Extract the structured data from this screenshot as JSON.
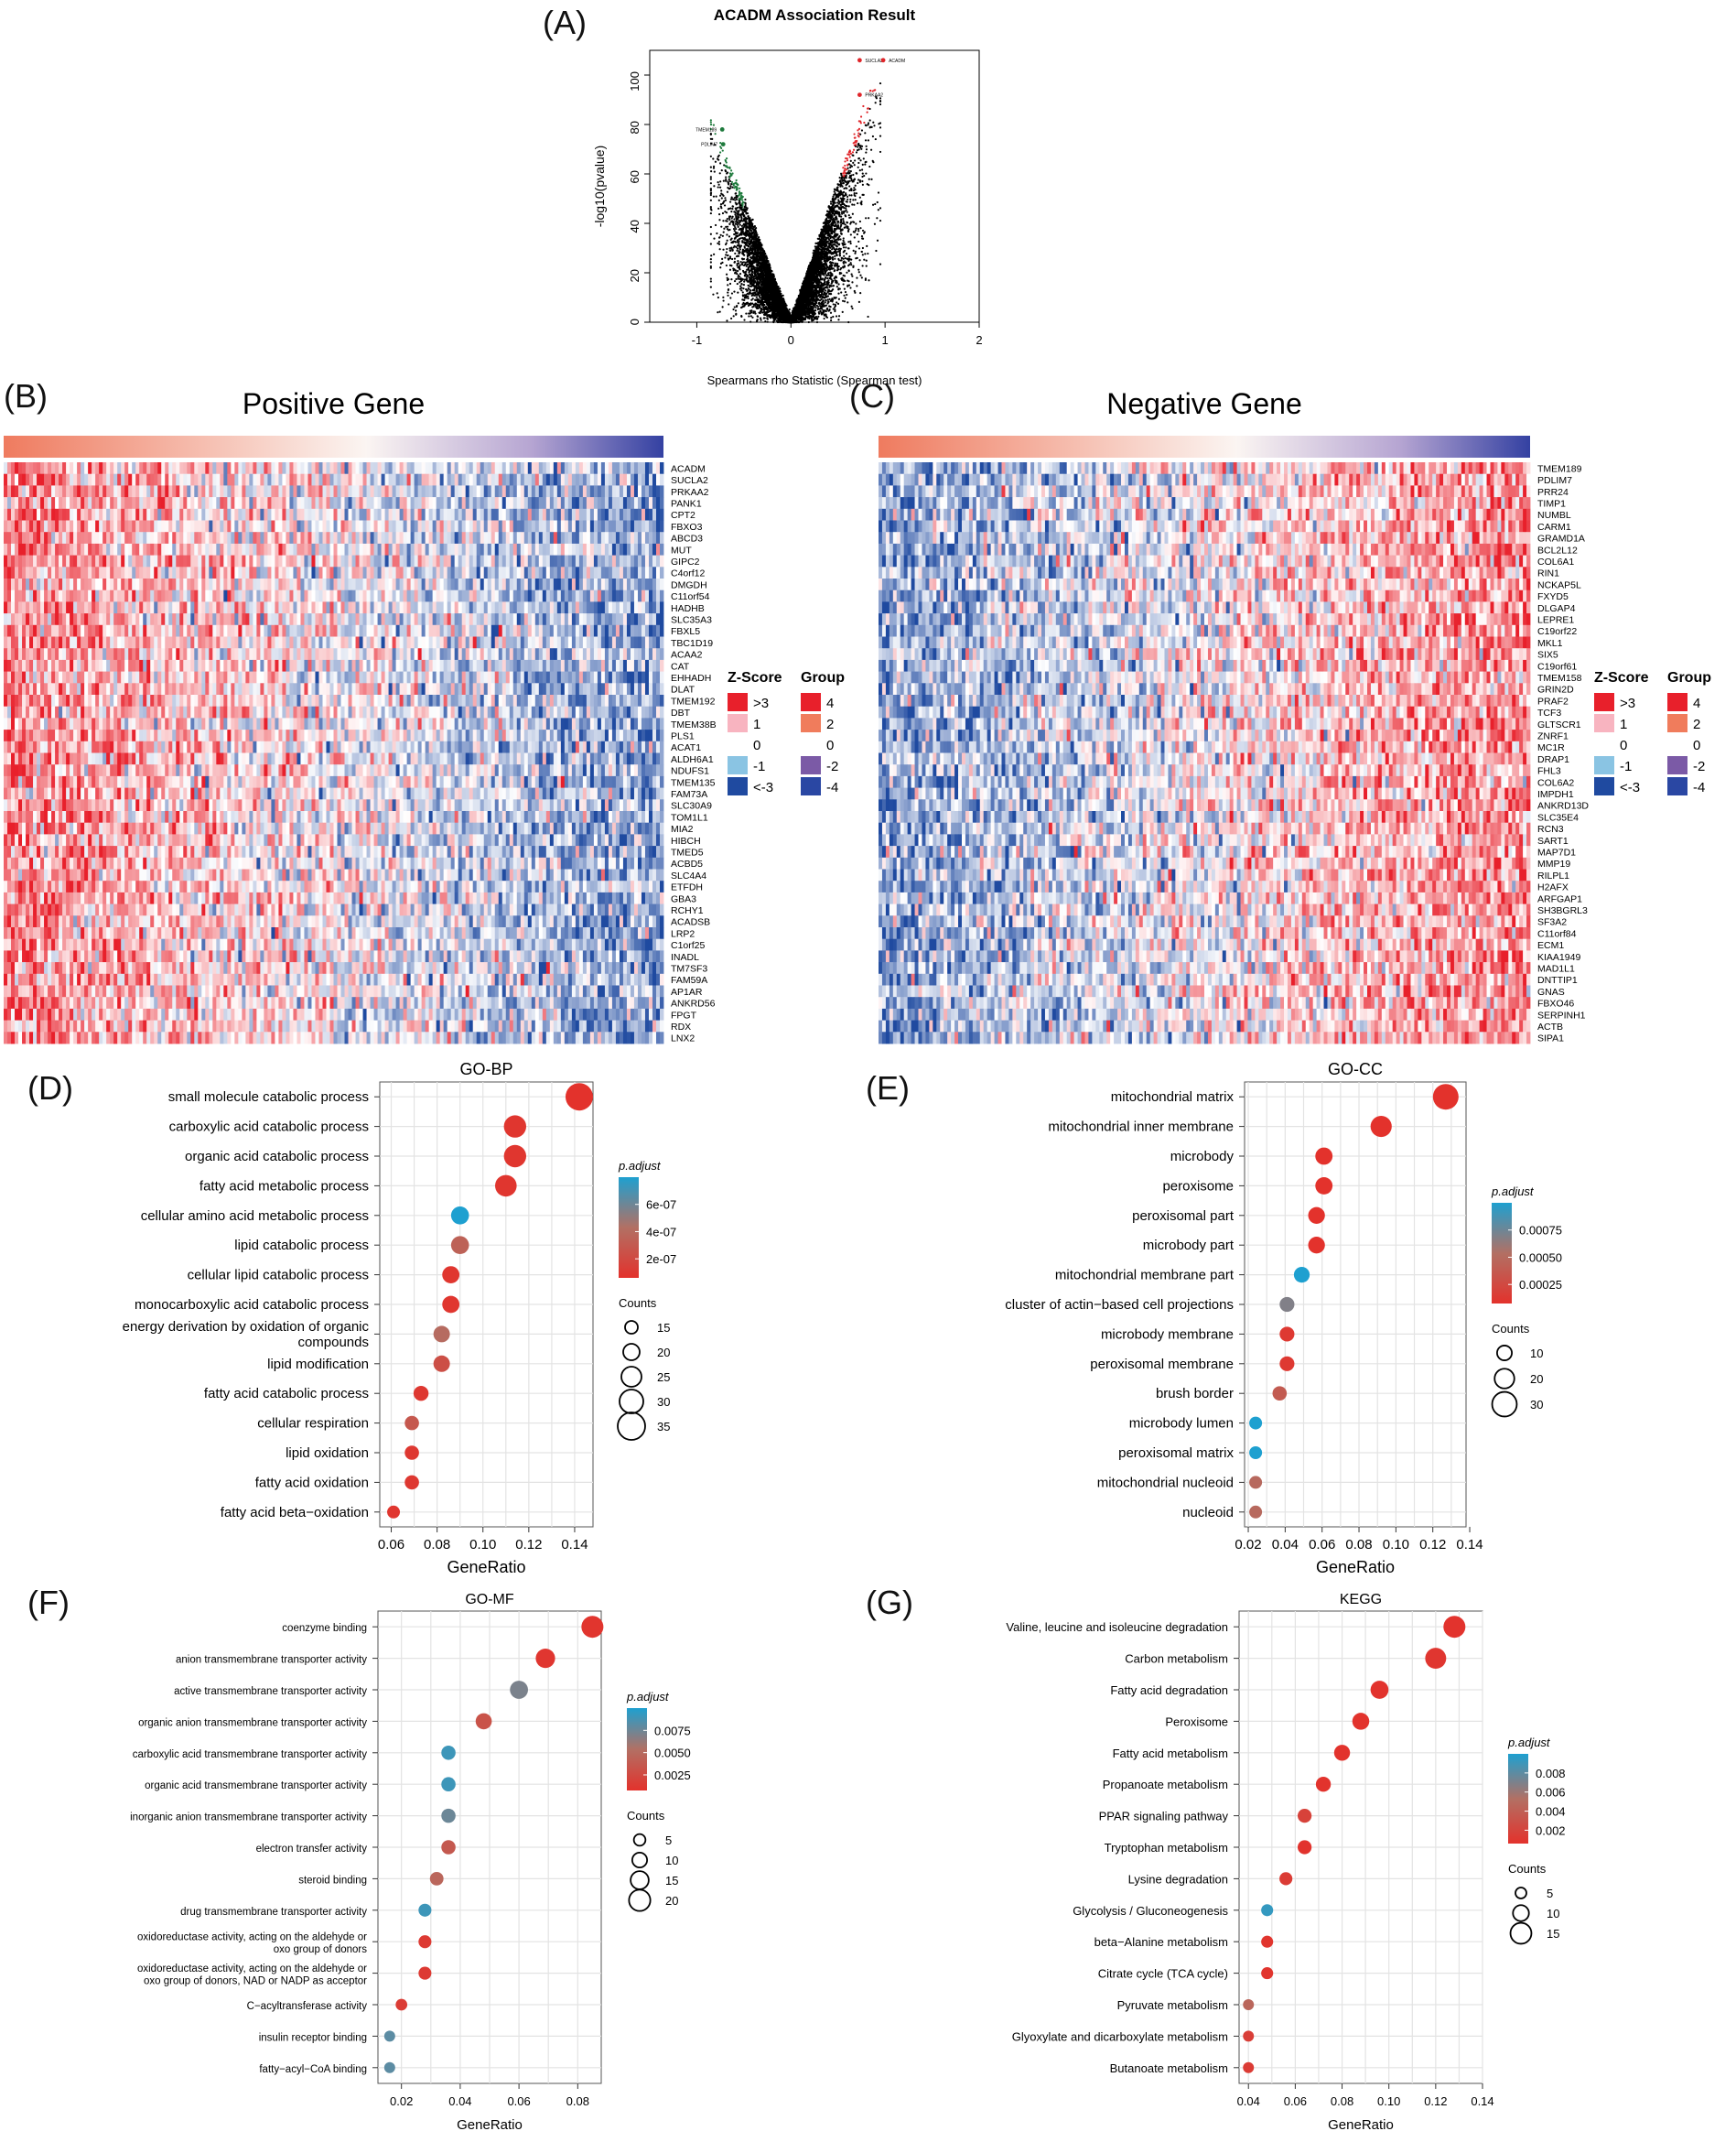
{
  "panels": {
    "A": "(A)",
    "B": "(B)",
    "C": "(C)",
    "D": "(D)",
    "E": "(E)",
    "F": "(F)",
    "G": "(G)"
  },
  "chart_data": [
    {
      "id": "A",
      "type": "scatter",
      "title": "ACADM Association Result",
      "xlabel": "Spearmans rho Statistic (Spearman test)",
      "ylabel": "-log10(pvalue)",
      "xlim": [
        -1.5,
        2.0
      ],
      "ylim": [
        0,
        110
      ],
      "xticks": [
        -1,
        0,
        1,
        2
      ],
      "yticks": [
        0,
        20,
        40,
        60,
        80,
        100
      ],
      "labeled_points": [
        {
          "label": "SUCLA2",
          "x": 0.73,
          "y": 106
        },
        {
          "label": "ACADM",
          "x": 0.98,
          "y": 106
        },
        {
          "label": "PRKAA2",
          "x": 0.73,
          "y": 92
        },
        {
          "label": "TMEM189",
          "x": -0.73,
          "y": 78
        },
        {
          "label": "PDLIM7",
          "x": -0.72,
          "y": 72
        }
      ],
      "colors": {
        "positive": "#e0252a",
        "negative": "#1e7a3c",
        "other": "#000000"
      }
    },
    {
      "id": "B",
      "type": "heatmap",
      "title": "Positive Gene",
      "genes": [
        "ACADM",
        "SUCLA2",
        "PRKAA2",
        "PANK1",
        "CPT2",
        "FBXO3",
        "ABCD3",
        "MUT",
        "GIPC2",
        "C4orf12",
        "DMGDH",
        "C11orf54",
        "HADHB",
        "SLC35A3",
        "FBXL5",
        "TBC1D19",
        "ACAA2",
        "CAT",
        "EHHADH",
        "DLAT",
        "TMEM192",
        "DBT",
        "TMEM38B",
        "PLS1",
        "ACAT1",
        "ALDH6A1",
        "NDUFS1",
        "TMEM135",
        "FAM73A",
        "SLC30A9",
        "TOM1L1",
        "MIA2",
        "HIBCH",
        "TMED5",
        "ACBD5",
        "SLC4A4",
        "ETFDH",
        "GBA3",
        "RCHY1",
        "ACADSB",
        "LRP2",
        "C1orf25",
        "INADL",
        "TM7SF3",
        "FAM59A",
        "AP1AR",
        "ANKRD56",
        "FPGT",
        "RDX",
        "LNX2"
      ],
      "legend": {
        "zscore_title": "Z-Score",
        "zscore_labels": [
          ">3",
          "1",
          "0",
          "-1",
          "<-3"
        ],
        "zscore_colors": [
          "#e8202b",
          "#f8b4c0",
          "#ffffff",
          "#8ac4e3",
          "#1f4aa0"
        ],
        "group_title": "Group",
        "group_labels": [
          "4",
          "2",
          "0",
          "-2",
          "-4"
        ],
        "group_colors": [
          "#e8202b",
          "#f07c5c",
          "#ffffff",
          "#7b5aa6",
          "#2a47a3"
        ]
      }
    },
    {
      "id": "C",
      "type": "heatmap",
      "title": "Negative Gene",
      "genes": [
        "TMEM189",
        "PDLIM7",
        "PRR24",
        "TIMP1",
        "NUMBL",
        "CARM1",
        "GRAMD1A",
        "BCL2L12",
        "COL6A1",
        "RIN1",
        "NCKAP5L",
        "FXYD5",
        "DLGAP4",
        "LEPRE1",
        "C19orf22",
        "MKL1",
        "SIX5",
        "C19orf61",
        "TMEM158",
        "GRIN2D",
        "PRAF2",
        "TCF3",
        "GLTSCR1",
        "ZNRF1",
        "MC1R",
        "DRAP1",
        "FHL3",
        "COL6A2",
        "IMPDH1",
        "ANKRD13D",
        "SLC35E4",
        "RCN3",
        "SART1",
        "MAP7D1",
        "MMP19",
        "RILPL1",
        "H2AFX",
        "ARFGAP1",
        "SH3BGRL3",
        "SF3A2",
        "C11orf84",
        "ECM1",
        "KIAA1949",
        "MAD1L1",
        "DNTTIP1",
        "GNAS",
        "FBXO46",
        "SERPINH1",
        "ACTB",
        "SIPA1"
      ],
      "legend": {
        "zscore_title": "Z-Score",
        "zscore_labels": [
          ">3",
          "1",
          "0",
          "-1",
          "<-3"
        ],
        "zscore_colors": [
          "#e8202b",
          "#f8b4c0",
          "#ffffff",
          "#8ac4e3",
          "#1f4aa0"
        ],
        "group_title": "Group",
        "group_labels": [
          "4",
          "2",
          "0",
          "-2",
          "-4"
        ],
        "group_colors": [
          "#e8202b",
          "#f07c5c",
          "#ffffff",
          "#7b5aa6",
          "#2a47a3"
        ]
      }
    },
    {
      "id": "D",
      "type": "scatter",
      "title": "GO-BP",
      "xlabel": "GeneRatio",
      "xlim": [
        0.055,
        0.148
      ],
      "xticks": [
        "0.06",
        "0.08",
        "0.10",
        "0.12",
        "0.14"
      ],
      "terms": [
        "small molecule catabolic process",
        "carboxylic acid catabolic process",
        "organic acid catabolic process",
        "fatty acid metabolic process",
        "cellular amino acid metabolic process",
        "lipid catabolic process",
        "cellular lipid catabolic process",
        "monocarboxylic acid catabolic process",
        "energy derivation by oxidation of organic compounds",
        "lipid modification",
        "fatty acid catabolic process",
        "cellular respiration",
        "lipid oxidation",
        "fatty acid oxidation",
        "fatty acid beta−oxidation"
      ],
      "gene_ratio": [
        0.142,
        0.114,
        0.114,
        0.11,
        0.09,
        0.09,
        0.086,
        0.086,
        0.082,
        0.082,
        0.073,
        0.069,
        0.069,
        0.069,
        0.061
      ],
      "counts": [
        35,
        28,
        28,
        27,
        22,
        22,
        21,
        21,
        20,
        20,
        18,
        17,
        17,
        17,
        15
      ],
      "p_adjust": [
        1e-10,
        2e-08,
        2e-08,
        2e-08,
        6.5e-07,
        2.5e-07,
        2e-08,
        2e-08,
        3e-07,
        1.5e-07,
        3e-08,
        2e-07,
        3e-08,
        3e-08,
        2e-08
      ],
      "legend": {
        "color_title": "p.adjust",
        "color_ticks": [
          "6e-07",
          "4e-07",
          "2e-07"
        ],
        "size_title": "Counts",
        "size_ticks": [
          "15",
          "20",
          "25",
          "30",
          "35"
        ]
      }
    },
    {
      "id": "E",
      "type": "scatter",
      "title": "GO-CC",
      "xlabel": "GeneRatio",
      "xlim": [
        0.018,
        0.138
      ],
      "xticks": [
        "0.02",
        "0.04",
        "0.06",
        "0.08",
        "0.10",
        "0.12",
        "0.14"
      ],
      "terms": [
        "mitochondrial matrix",
        "mitochondrial inner membrane",
        "microbody",
        "peroxisome",
        "peroxisomal part",
        "microbody part",
        "mitochondrial membrane part",
        "cluster of actin−based cell projections",
        "microbody membrane",
        "peroxisomal membrane",
        "brush border",
        "microbody lumen",
        "peroxisomal matrix",
        "mitochondrial nucleoid",
        "nucleoid"
      ],
      "gene_ratio": [
        0.127,
        0.092,
        0.061,
        0.061,
        0.057,
        0.057,
        0.049,
        0.041,
        0.041,
        0.041,
        0.037,
        0.024,
        0.024,
        0.024,
        0.024
      ],
      "counts": [
        32,
        23,
        15,
        15,
        14,
        14,
        12,
        10,
        10,
        10,
        9,
        6,
        6,
        6,
        6
      ],
      "p_adjust": [
        1e-08,
        1e-07,
        1e-06,
        1e-06,
        2e-06,
        2e-06,
        0.0009,
        0.0006,
        5e-05,
        5e-05,
        0.0003,
        0.0009,
        0.0009,
        0.0004,
        0.0004
      ],
      "legend": {
        "color_title": "p.adjust",
        "color_ticks": [
          "0.00075",
          "0.00050",
          "0.00025"
        ],
        "size_title": "Counts",
        "size_ticks": [
          "10",
          "20",
          "30"
        ]
      }
    },
    {
      "id": "F",
      "type": "scatter",
      "title": "GO-MF",
      "xlabel": "GeneRatio",
      "xlim": [
        0.012,
        0.088
      ],
      "xticks": [
        "0.02",
        "0.04",
        "0.06",
        "0.08"
      ],
      "terms": [
        "coenzyme binding",
        "anion transmembrane transporter activity",
        "active transmembrane transporter activity",
        "organic anion transmembrane transporter activity",
        "carboxylic acid transmembrane transporter activity",
        "organic acid transmembrane transporter activity",
        "inorganic anion transmembrane transporter activity",
        "electron transfer activity",
        "steroid binding",
        "drug transmembrane transporter activity",
        "oxidoreductase activity, acting on the aldehyde or oxo group of donors",
        "oxidoreductase activity, acting on the aldehyde or oxo group of donors, NAD or NADP as acceptor",
        "C−acyltransferase activity",
        "insulin receptor binding",
        "fatty−acyl−CoA binding"
      ],
      "gene_ratio": [
        0.085,
        0.069,
        0.06,
        0.048,
        0.036,
        0.036,
        0.036,
        0.036,
        0.032,
        0.028,
        0.028,
        0.028,
        0.02,
        0.016,
        0.016
      ],
      "counts": [
        21,
        17,
        15,
        12,
        9,
        9,
        9,
        9,
        8,
        7,
        7,
        7,
        5,
        4,
        4
      ],
      "p_adjust": [
        0.0002,
        0.0003,
        0.0065,
        0.0025,
        0.0085,
        0.0085,
        0.007,
        0.003,
        0.004,
        0.0085,
        0.0006,
        0.0006,
        0.0008,
        0.0075,
        0.0075
      ],
      "legend": {
        "color_title": "p.adjust",
        "color_ticks": [
          "0.0075",
          "0.0050",
          "0.0025"
        ],
        "size_title": "Counts",
        "size_ticks": [
          "5",
          "10",
          "15",
          "20"
        ]
      }
    },
    {
      "id": "G",
      "type": "scatter",
      "title": "KEGG",
      "xlabel": "GeneRatio",
      "xlim": [
        0.036,
        0.14
      ],
      "xticks": [
        "0.04",
        "0.06",
        "0.08",
        "0.10",
        "0.12",
        "0.14"
      ],
      "terms": [
        "Valine, leucine and isoleucine degradation",
        "Carbon metabolism",
        "Fatty acid degradation",
        "Peroxisome",
        "Fatty acid metabolism",
        "Propanoate metabolism",
        "PPAR signaling pathway",
        "Tryptophan metabolism",
        "Lysine degradation",
        "Glycolysis / Gluconeogenesis",
        "beta−Alanine metabolism",
        "Citrate cycle (TCA cycle)",
        "Pyruvate metabolism",
        "Glyoxylate and dicarboxylate metabolism",
        "Butanoate metabolism"
      ],
      "gene_ratio": [
        0.128,
        0.12,
        0.096,
        0.088,
        0.08,
        0.072,
        0.064,
        0.064,
        0.056,
        0.048,
        0.048,
        0.048,
        0.04,
        0.04,
        0.04
      ],
      "counts": [
        16,
        15,
        12,
        11,
        10,
        9,
        8,
        8,
        7,
        6,
        6,
        6,
        5,
        5,
        5
      ],
      "p_adjust": [
        0.0001,
        0.0003,
        0.0001,
        0.0001,
        0.0001,
        0.0001,
        0.0012,
        0.0001,
        0.0008,
        0.0088,
        0.0002,
        0.0002,
        0.004,
        0.001,
        0.0008
      ],
      "legend": {
        "color_title": "p.adjust",
        "color_ticks": [
          "0.008",
          "0.006",
          "0.004",
          "0.002"
        ],
        "size_title": "Counts",
        "size_ticks": [
          "5",
          "10",
          "15"
        ]
      }
    }
  ]
}
